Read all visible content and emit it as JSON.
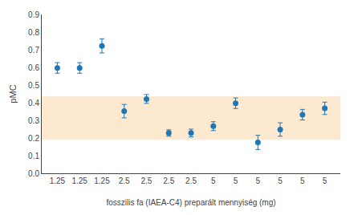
{
  "chart_data": {
    "type": "scatter",
    "xlabel": "fosszilis fa (IAEA-C4) preparált mennyiség (mg)",
    "ylabel": "pMC",
    "categories": [
      "1.25",
      "1.25",
      "1.25",
      "2.5",
      "2.5",
      "2.5",
      "2.5",
      "5",
      "5",
      "5",
      "5",
      "5",
      "5"
    ],
    "values": [
      0.597,
      0.597,
      0.722,
      0.352,
      0.421,
      0.228,
      0.228,
      0.267,
      0.397,
      0.175,
      0.248,
      0.332,
      0.368
    ],
    "errors": [
      0.03,
      0.03,
      0.04,
      0.038,
      0.025,
      0.018,
      0.022,
      0.025,
      0.03,
      0.04,
      0.038,
      0.03,
      0.035
    ],
    "band": {
      "range": [
        0.19,
        0.435
      ],
      "color": "#fde8d0"
    },
    "ylim": [
      0.0,
      0.9
    ],
    "yticks": [
      {
        "value": 0.0,
        "label": "0.0"
      },
      0.1,
      0.2,
      0.3,
      0.4,
      0.5,
      0.6,
      0.7,
      0.8,
      0.9
    ],
    "marker": "circle",
    "grid": false
  }
}
